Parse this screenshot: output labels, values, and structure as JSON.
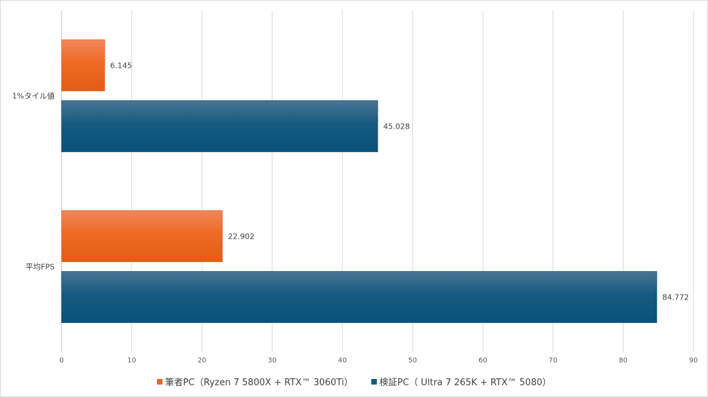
{
  "chart_data": {
    "type": "bar",
    "orientation": "horizontal",
    "categories": [
      "1%タイル値",
      "平均FPS"
    ],
    "series": [
      {
        "name": "筆者PC（Ryzen 7 5800X + RTX™ 3060Ti）",
        "color": "#e8672a",
        "values": [
          6.145,
          22.902
        ],
        "labels": [
          "6.145",
          "22.902"
        ]
      },
      {
        "name": "検証PC（ Ultra 7 265K + RTX™ 5080）",
        "color": "#0f5a7e",
        "values": [
          45.028,
          84.772
        ],
        "labels": [
          "45.028",
          "84.772"
        ]
      }
    ],
    "xlim": [
      0,
      90
    ],
    "xticks": [
      0,
      10,
      20,
      30,
      40,
      50,
      60,
      70,
      80,
      90
    ],
    "grid": true,
    "legend_position": "bottom"
  }
}
